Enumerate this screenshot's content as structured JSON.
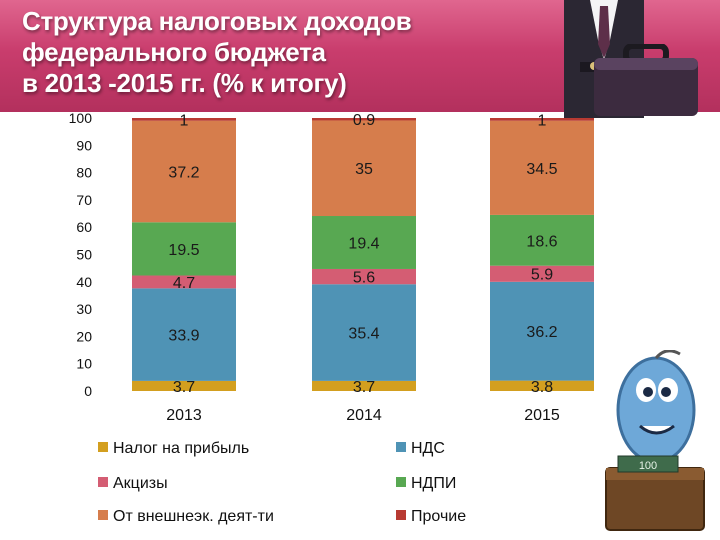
{
  "title": "Структура налоговых доходов\nфедерального бюджета\nв 2013 -2015 гг. (% к итогу)",
  "mascot_badge": "100",
  "chart_data": {
    "type": "bar",
    "stacked": true,
    "title": "Структура налоговых доходов федерального бюджета в 2013 -2015 гг. (% к итогу)",
    "categories": [
      "2013",
      "2014",
      "2015"
    ],
    "ylim": [
      0,
      100
    ],
    "yticks": [
      "0",
      "10",
      "20",
      "30",
      "40",
      "50",
      "60",
      "70",
      "80",
      "90",
      "100"
    ],
    "grid": false,
    "legend_position": "bottom",
    "series": [
      {
        "name": "Налог на прибыль",
        "color": "#d39f1f",
        "values": [
          3.7,
          3.7,
          3.8
        ],
        "labels": [
          "3.7",
          "3.7",
          "3.8"
        ]
      },
      {
        "name": "НДС",
        "color": "#4f93b5",
        "values": [
          33.9,
          35.4,
          36.2
        ],
        "labels": [
          "33.9",
          "35.4",
          "36.2"
        ]
      },
      {
        "name": "Акцизы",
        "color": "#d45d73",
        "values": [
          4.7,
          5.6,
          5.9
        ],
        "labels": [
          "4.7",
          "5.6",
          "5.9"
        ]
      },
      {
        "name": "НДПИ",
        "color": "#58a852",
        "values": [
          19.5,
          19.4,
          18.6
        ],
        "labels": [
          "19.5",
          "19.4",
          "18.6"
        ]
      },
      {
        "name": "От внешнеэк. деят-ти",
        "color": "#d67d4c",
        "values": [
          37.2,
          35,
          34.5
        ],
        "labels": [
          "37.2",
          "35",
          "34.5"
        ]
      },
      {
        "name": "Прочие",
        "color": "#b83a32",
        "values": [
          1,
          0.9,
          1
        ],
        "labels": [
          "1",
          "0.9",
          "1"
        ]
      }
    ],
    "legend_order": [
      "Налог на прибыль",
      "НДС",
      "Акцизы",
      "НДПИ",
      "От внешнеэк. деят-ти",
      "Прочие"
    ]
  }
}
